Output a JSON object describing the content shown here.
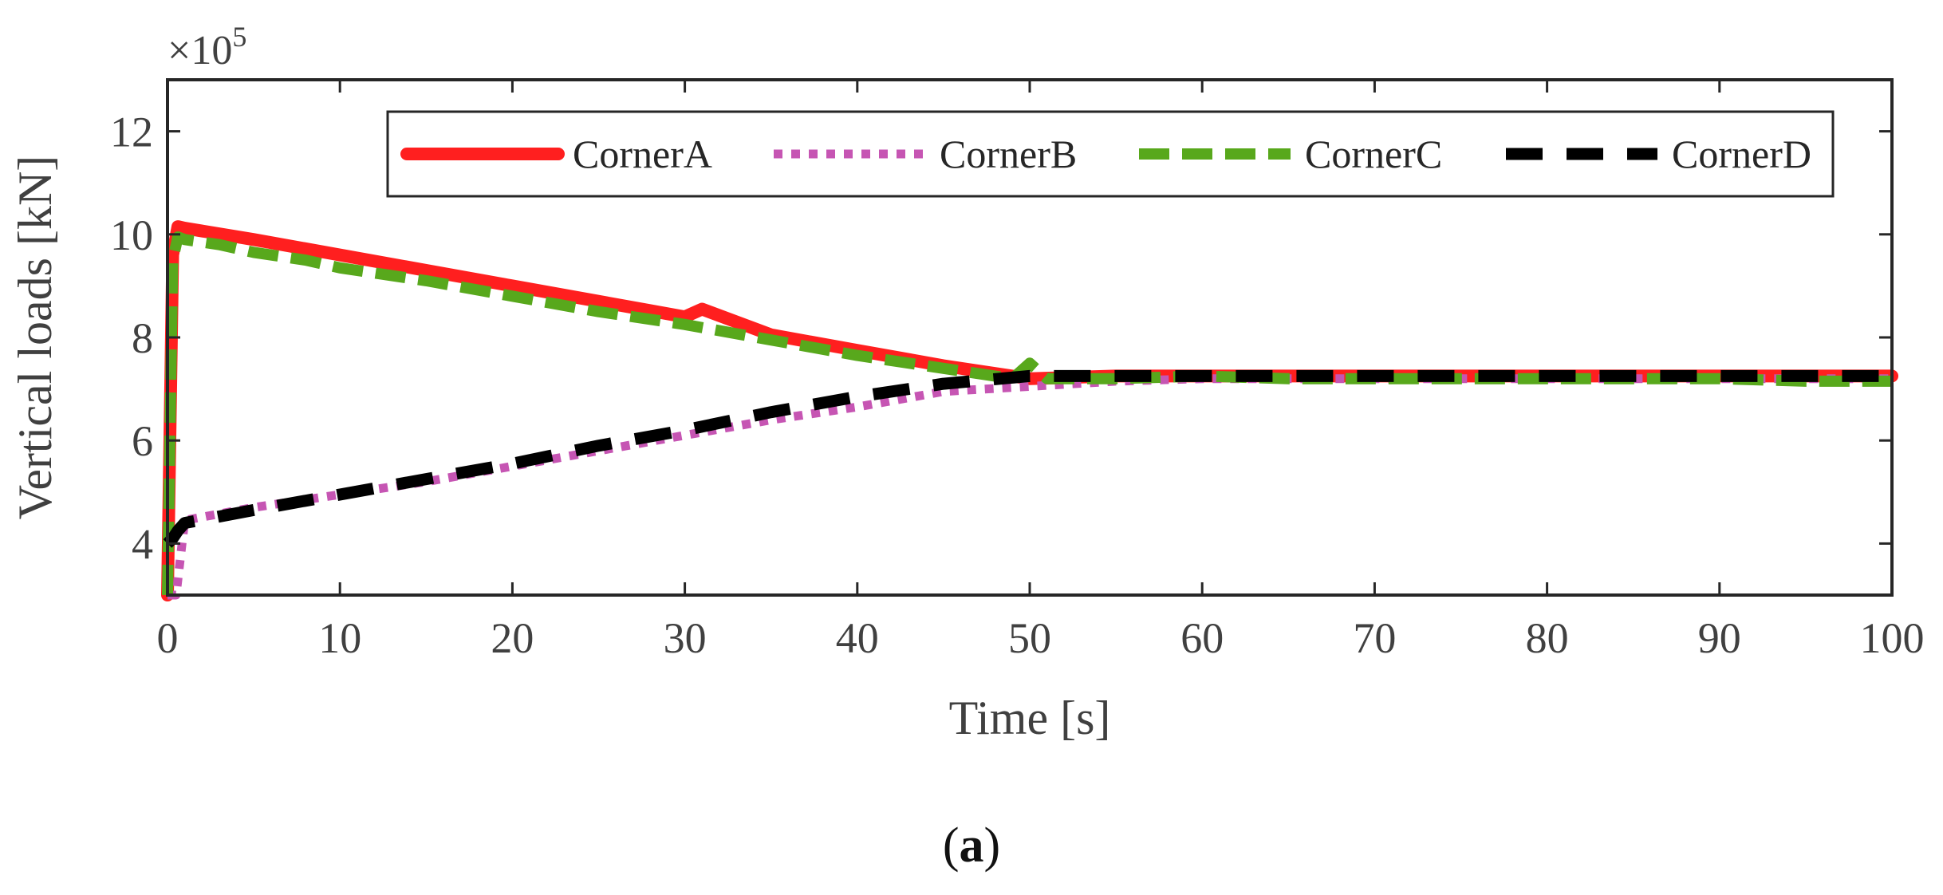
{
  "chart_data": {
    "type": "line",
    "title": "",
    "xlabel": "Time [s]",
    "ylabel": "Vertical loads [kN]",
    "y_exponent_label": "×10^5",
    "y_exponent_base": "×10",
    "y_exponent_power": "5",
    "xlim": [
      0,
      100
    ],
    "ylim": [
      3,
      13
    ],
    "xticks": [
      0,
      10,
      20,
      30,
      40,
      50,
      60,
      70,
      80,
      90,
      100
    ],
    "yticks": [
      4,
      6,
      8,
      10,
      12
    ],
    "grid": false,
    "legend_position": "top-right",
    "series": [
      {
        "name": "CornerA",
        "color": "#ff1f1f",
        "style": "solid",
        "x": [
          0,
          0.3,
          0.6,
          1,
          5,
          10,
          15,
          20,
          25,
          30,
          31,
          35,
          40,
          45,
          50,
          55,
          60,
          65,
          70,
          75,
          80,
          85,
          90,
          95,
          100
        ],
        "y": [
          3.0,
          9.6,
          10.15,
          10.12,
          9.9,
          9.6,
          9.3,
          9.0,
          8.7,
          8.4,
          8.55,
          8.05,
          7.75,
          7.45,
          7.2,
          7.25,
          7.25,
          7.25,
          7.25,
          7.25,
          7.25,
          7.25,
          7.25,
          7.25,
          7.25
        ]
      },
      {
        "name": "CornerB",
        "color": "#c655b3",
        "style": "dotted",
        "x": [
          0,
          0.5,
          1,
          5,
          10,
          15,
          20,
          25,
          30,
          35,
          40,
          45,
          50,
          55,
          60,
          65,
          70,
          75,
          80,
          85,
          90,
          95,
          100
        ],
        "y": [
          3.0,
          3.0,
          4.45,
          4.7,
          4.95,
          5.2,
          5.5,
          5.8,
          6.1,
          6.4,
          6.65,
          6.95,
          7.05,
          7.15,
          7.2,
          7.2,
          7.2,
          7.2,
          7.2,
          7.2,
          7.2,
          7.2,
          7.2
        ]
      },
      {
        "name": "CornerC",
        "color": "#58a81c",
        "style": "dashed",
        "x": [
          0,
          0.3,
          0.6,
          1,
          3,
          5,
          8,
          10,
          15,
          20,
          25,
          30,
          35,
          40,
          45,
          49,
          50,
          51,
          55,
          60,
          65,
          70,
          75,
          80,
          85,
          90,
          95,
          100
        ],
        "y": [
          3.0,
          9.5,
          9.95,
          9.9,
          9.8,
          9.65,
          9.5,
          9.35,
          9.1,
          8.8,
          8.5,
          8.25,
          7.95,
          7.65,
          7.4,
          7.2,
          7.5,
          7.2,
          7.2,
          7.25,
          7.2,
          7.2,
          7.2,
          7.2,
          7.2,
          7.2,
          7.15,
          7.15
        ]
      },
      {
        "name": "CornerD",
        "color": "#000000",
        "style": "dashed",
        "x": [
          0,
          0.3,
          0.6,
          1,
          5,
          10,
          15,
          20,
          25,
          30,
          35,
          40,
          45,
          50,
          55,
          60,
          65,
          70,
          75,
          80,
          85,
          90,
          95,
          100
        ],
        "y": [
          4.0,
          4.1,
          4.25,
          4.4,
          4.65,
          4.95,
          5.25,
          5.55,
          5.9,
          6.2,
          6.55,
          6.85,
          7.1,
          7.25,
          7.25,
          7.25,
          7.25,
          7.25,
          7.25,
          7.25,
          7.25,
          7.25,
          7.25,
          7.25
        ]
      }
    ]
  },
  "caption": {
    "open": "(",
    "letter": "a",
    "close": ")"
  }
}
